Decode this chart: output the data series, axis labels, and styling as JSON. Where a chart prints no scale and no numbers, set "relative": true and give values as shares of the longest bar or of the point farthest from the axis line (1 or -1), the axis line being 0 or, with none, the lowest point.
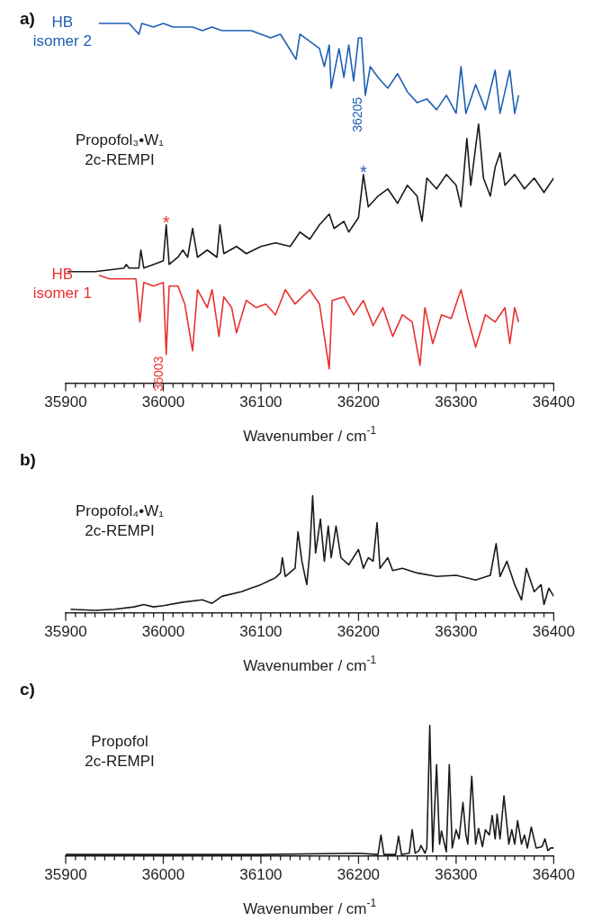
{
  "chart_data": [
    {
      "type": "line",
      "title": "a)",
      "xlabel": "Wavenumber / cm$^{-1}$",
      "relative": true,
      "xlim": [
        35900,
        36400
      ],
      "xticks": [
        35900,
        {
          "value": 35910,
          "label": null
        },
        {
          "value": 35920,
          "label": null
        },
        {
          "value": 35930,
          "label": null
        },
        {
          "value": 35940,
          "label": null
        },
        {
          "value": 35950,
          "label": null
        },
        {
          "value": 35960,
          "label": null
        },
        {
          "value": 35970,
          "label": null
        },
        {
          "value": 35980,
          "label": null
        },
        {
          "value": 35990,
          "label": null
        },
        36000,
        {
          "value": 36010,
          "label": null
        },
        {
          "value": 36020,
          "label": null
        },
        {
          "value": 36030,
          "label": null
        },
        {
          "value": 36040,
          "label": null
        },
        {
          "value": 36050,
          "label": null
        },
        {
          "value": 36060,
          "label": null
        },
        {
          "value": 36070,
          "label": null
        },
        {
          "value": 36080,
          "label": null
        },
        {
          "value": 36090,
          "label": null
        },
        36100,
        {
          "value": 36110,
          "label": null
        },
        {
          "value": 36120,
          "label": null
        },
        {
          "value": 36130,
          "label": null
        },
        {
          "value": 36140,
          "label": null
        },
        {
          "value": 36150,
          "label": null
        },
        {
          "value": 36160,
          "label": null
        },
        {
          "value": 36170,
          "label": null
        },
        {
          "value": 36180,
          "label": null
        },
        {
          "value": 36190,
          "label": null
        },
        36200,
        {
          "value": 36210,
          "label": null
        },
        {
          "value": 36220,
          "label": null
        },
        {
          "value": 36230,
          "label": null
        },
        {
          "value": 36240,
          "label": null
        },
        {
          "value": 36250,
          "label": null
        },
        {
          "value": 36260,
          "label": null
        },
        {
          "value": 36270,
          "label": null
        },
        {
          "value": 36280,
          "label": null
        },
        {
          "value": 36290,
          "label": null
        },
        36300,
        {
          "value": 36310,
          "label": null
        },
        {
          "value": 36320,
          "label": null
        },
        {
          "value": 36330,
          "label": null
        },
        {
          "value": 36340,
          "label": null
        },
        {
          "value": 36350,
          "label": null
        },
        {
          "value": 36360,
          "label": null
        },
        {
          "value": 36370,
          "label": null
        },
        {
          "value": 36380,
          "label": null
        },
        {
          "value": 36390,
          "label": null
        },
        36400
      ],
      "series": [
        {
          "name": "HB isomer 2",
          "color": "#1f5fb5",
          "x": [
            35934,
            35950,
            35965,
            35975,
            35978,
            35990,
            36000,
            36010,
            36020,
            36030,
            36040,
            36050,
            36060,
            36070,
            36080,
            36090,
            36100,
            36110,
            36120,
            36136,
            36140,
            36150,
            36160,
            36165,
            36170,
            36172,
            36180,
            36185,
            36190,
            36195,
            36200,
            36203,
            36207,
            36212,
            36220,
            36230,
            36240,
            36250,
            36260,
            36270,
            36280,
            36290,
            36300,
            36305,
            36310,
            36320,
            36330,
            36340,
            36345,
            36350,
            36355,
            36360,
            36364
          ],
          "values": [
            1.0,
            1.0,
            1.0,
            0.97,
            1.0,
            0.99,
            1.0,
            0.99,
            0.99,
            0.99,
            0.98,
            0.99,
            0.98,
            0.98,
            0.98,
            0.98,
            0.97,
            0.96,
            0.97,
            0.9,
            0.97,
            0.95,
            0.93,
            0.88,
            0.94,
            0.82,
            0.93,
            0.85,
            0.94,
            0.84,
            0.96,
            0.96,
            0.8,
            0.88,
            0.85,
            0.82,
            0.86,
            0.81,
            0.78,
            0.79,
            0.76,
            0.8,
            0.75,
            0.88,
            0.75,
            0.83,
            0.76,
            0.87,
            0.75,
            0.81,
            0.87,
            0.75,
            0.8
          ]
        },
        {
          "name": "Propofol₃•W₁ 2c-REMPI",
          "color": "#1a1a1a",
          "x": [
            35902,
            35930,
            35960,
            35962,
            35965,
            35975,
            35977,
            35980,
            35990,
            36000,
            36003,
            36006,
            36015,
            36020,
            36025,
            36030,
            36035,
            36045,
            36055,
            36058,
            36062,
            36075,
            36085,
            36100,
            36115,
            36130,
            36140,
            36150,
            36160,
            36170,
            36175,
            36185,
            36190,
            36200,
            36205,
            36210,
            36220,
            36230,
            36240,
            36250,
            36260,
            36265,
            36270,
            36280,
            36290,
            36300,
            36305,
            36311,
            36315,
            36323,
            36328,
            36335,
            36340,
            36345,
            36350,
            36360,
            36370,
            36380,
            36390,
            36400
          ],
          "values": [
            0.31,
            0.31,
            0.32,
            0.33,
            0.32,
            0.32,
            0.37,
            0.32,
            0.33,
            0.34,
            0.44,
            0.33,
            0.35,
            0.37,
            0.35,
            0.43,
            0.35,
            0.37,
            0.35,
            0.44,
            0.36,
            0.38,
            0.36,
            0.38,
            0.39,
            0.38,
            0.42,
            0.4,
            0.44,
            0.47,
            0.43,
            0.45,
            0.42,
            0.46,
            0.58,
            0.49,
            0.52,
            0.54,
            0.5,
            0.55,
            0.52,
            0.45,
            0.57,
            0.54,
            0.58,
            0.55,
            0.49,
            0.68,
            0.55,
            0.72,
            0.57,
            0.52,
            0.6,
            0.64,
            0.55,
            0.58,
            0.54,
            0.57,
            0.53,
            0.57
          ]
        },
        {
          "name": "HB isomer 1",
          "color": "#e8312f",
          "x": [
            35934,
            35945,
            35960,
            35972,
            35976,
            35980,
            35990,
            36000,
            36003,
            36006,
            36015,
            36022,
            36030,
            36035,
            36045,
            36050,
            36057,
            36062,
            36070,
            36075,
            36085,
            36095,
            36105,
            36115,
            36125,
            36135,
            36150,
            36160,
            36170,
            36173,
            36185,
            36195,
            36205,
            36215,
            36225,
            36235,
            36245,
            36255,
            36263,
            36268,
            36276,
            36285,
            36295,
            36305,
            36312,
            36320,
            36330,
            36340,
            36350,
            36355,
            36360,
            36364
          ],
          "values": [
            0.3,
            0.29,
            0.29,
            0.29,
            0.17,
            0.28,
            0.27,
            0.28,
            0.08,
            0.27,
            0.27,
            0.22,
            0.09,
            0.26,
            0.21,
            0.26,
            0.13,
            0.24,
            0.21,
            0.14,
            0.23,
            0.21,
            0.22,
            0.19,
            0.26,
            0.22,
            0.26,
            0.22,
            0.04,
            0.23,
            0.24,
            0.19,
            0.23,
            0.16,
            0.21,
            0.13,
            0.19,
            0.17,
            0.05,
            0.21,
            0.11,
            0.19,
            0.18,
            0.26,
            0.18,
            0.1,
            0.19,
            0.17,
            0.21,
            0.11,
            0.21,
            0.17
          ]
        }
      ],
      "annotations": [
        {
          "text": "36205",
          "x": 36207,
          "y": 0.8
        },
        {
          "text": "*",
          "x": 36205,
          "y": 0.58
        },
        {
          "text": "36003",
          "x": 36003,
          "y": 0.08
        },
        {
          "text": "*",
          "x": 36003,
          "y": 0.44
        }
      ]
    },
    {
      "type": "line",
      "title": "b)",
      "xlabel": "Wavenumber / cm$^{-1}$",
      "relative": true,
      "xlim": [
        35900,
        36400
      ],
      "xticks": [
        35900,
        {
          "value": 35910,
          "label": null
        },
        {
          "value": 35920,
          "label": null
        },
        {
          "value": 35930,
          "label": null
        },
        {
          "value": 35940,
          "label": null
        },
        {
          "value": 35950,
          "label": null
        },
        {
          "value": 35960,
          "label": null
        },
        {
          "value": 35970,
          "label": null
        },
        {
          "value": 35980,
          "label": null
        },
        {
          "value": 35990,
          "label": null
        },
        36000,
        {
          "value": 36010,
          "label": null
        },
        {
          "value": 36020,
          "label": null
        },
        {
          "value": 36030,
          "label": null
        },
        {
          "value": 36040,
          "label": null
        },
        {
          "value": 36050,
          "label": null
        },
        {
          "value": 36060,
          "label": null
        },
        {
          "value": 36070,
          "label": null
        },
        {
          "value": 36080,
          "label": null
        },
        {
          "value": 36090,
          "label": null
        },
        36100,
        {
          "value": 36110,
          "label": null
        },
        {
          "value": 36120,
          "label": null
        },
        {
          "value": 36130,
          "label": null
        },
        {
          "value": 36140,
          "label": null
        },
        {
          "value": 36150,
          "label": null
        },
        {
          "value": 36160,
          "label": null
        },
        {
          "value": 36170,
          "label": null
        },
        {
          "value": 36180,
          "label": null
        },
        {
          "value": 36190,
          "label": null
        },
        36200,
        {
          "value": 36210,
          "label": null
        },
        {
          "value": 36220,
          "label": null
        },
        {
          "value": 36230,
          "label": null
        },
        {
          "value": 36240,
          "label": null
        },
        {
          "value": 36250,
          "label": null
        },
        {
          "value": 36260,
          "label": null
        },
        {
          "value": 36270,
          "label": null
        },
        {
          "value": 36280,
          "label": null
        },
        {
          "value": 36290,
          "label": null
        },
        36300,
        {
          "value": 36310,
          "label": null
        },
        {
          "value": 36320,
          "label": null
        },
        {
          "value": 36330,
          "label": null
        },
        {
          "value": 36340,
          "label": null
        },
        {
          "value": 36350,
          "label": null
        },
        {
          "value": 36360,
          "label": null
        },
        {
          "value": 36370,
          "label": null
        },
        {
          "value": 36380,
          "label": null
        },
        {
          "value": 36390,
          "label": null
        },
        36400
      ],
      "series": [
        {
          "name": "Propofol₄•W₁ 2c-REMPI",
          "color": "#1a1a1a",
          "x": [
            35905,
            35930,
            35950,
            35970,
            35980,
            35990,
            36000,
            36020,
            36040,
            36050,
            36060,
            36080,
            36090,
            36100,
            36110,
            36115,
            36120,
            36122,
            36125,
            36135,
            36138,
            36142,
            36147,
            36150,
            36153,
            36156,
            36161,
            36165,
            36169,
            36172,
            36177,
            36182,
            36190,
            36200,
            36205,
            36210,
            36215,
            36219,
            36222,
            36230,
            36235,
            36245,
            36260,
            36280,
            36300,
            36320,
            36335,
            36341,
            36345,
            36352,
            36360,
            36367,
            36372,
            36380,
            36387,
            36390,
            36395,
            36400
          ],
          "values": [
            0.03,
            0.02,
            0.03,
            0.05,
            0.07,
            0.05,
            0.06,
            0.09,
            0.11,
            0.08,
            0.14,
            0.18,
            0.21,
            0.24,
            0.28,
            0.3,
            0.34,
            0.47,
            0.31,
            0.38,
            0.69,
            0.44,
            0.24,
            0.51,
            1.0,
            0.51,
            0.8,
            0.44,
            0.74,
            0.47,
            0.74,
            0.47,
            0.41,
            0.54,
            0.38,
            0.47,
            0.44,
            0.77,
            0.38,
            0.47,
            0.36,
            0.38,
            0.34,
            0.31,
            0.32,
            0.28,
            0.32,
            0.59,
            0.31,
            0.44,
            0.24,
            0.11,
            0.38,
            0.18,
            0.24,
            0.07,
            0.21,
            0.14
          ]
        }
      ]
    },
    {
      "type": "line",
      "title": "c)",
      "xlabel": "Wavenumber / cm$^{-1}$",
      "relative": true,
      "xlim": [
        35900,
        36400
      ],
      "xticks": [
        35900,
        {
          "value": 35910,
          "label": null
        },
        {
          "value": 35920,
          "label": null
        },
        {
          "value": 35930,
          "label": null
        },
        {
          "value": 35940,
          "label": null
        },
        {
          "value": 35950,
          "label": null
        },
        {
          "value": 35960,
          "label": null
        },
        {
          "value": 35970,
          "label": null
        },
        {
          "value": 35980,
          "label": null
        },
        {
          "value": 35990,
          "label": null
        },
        36000,
        {
          "value": 36010,
          "label": null
        },
        {
          "value": 36020,
          "label": null
        },
        {
          "value": 36030,
          "label": null
        },
        {
          "value": 36040,
          "label": null
        },
        {
          "value": 36050,
          "label": null
        },
        {
          "value": 36060,
          "label": null
        },
        {
          "value": 36070,
          "label": null
        },
        {
          "value": 36080,
          "label": null
        },
        {
          "value": 36090,
          "label": null
        },
        36100,
        {
          "value": 36110,
          "label": null
        },
        {
          "value": 36120,
          "label": null
        },
        {
          "value": 36130,
          "label": null
        },
        {
          "value": 36140,
          "label": null
        },
        {
          "value": 36150,
          "label": null
        },
        {
          "value": 36160,
          "label": null
        },
        {
          "value": 36170,
          "label": null
        },
        {
          "value": 36180,
          "label": null
        },
        {
          "value": 36190,
          "label": null
        },
        36200,
        {
          "value": 36210,
          "label": null
        },
        {
          "value": 36220,
          "label": null
        },
        {
          "value": 36230,
          "label": null
        },
        {
          "value": 36240,
          "label": null
        },
        {
          "value": 36250,
          "label": null
        },
        {
          "value": 36260,
          "label": null
        },
        {
          "value": 36270,
          "label": null
        },
        {
          "value": 36280,
          "label": null
        },
        {
          "value": 36290,
          "label": null
        },
        36300,
        {
          "value": 36310,
          "label": null
        },
        {
          "value": 36320,
          "label": null
        },
        {
          "value": 36330,
          "label": null
        },
        {
          "value": 36340,
          "label": null
        },
        {
          "value": 36350,
          "label": null
        },
        {
          "value": 36360,
          "label": null
        },
        {
          "value": 36370,
          "label": null
        },
        {
          "value": 36380,
          "label": null
        },
        {
          "value": 36390,
          "label": null
        },
        36400
      ],
      "series": [
        {
          "name": "Propofol 2c-REMPI",
          "color": "#1a1a1a",
          "x": [
            35900,
            36100,
            36200,
            36220,
            36223,
            36226,
            36238,
            36241,
            36244,
            36252,
            36255,
            36258,
            36262,
            36264,
            36268,
            36270,
            36273,
            36276,
            36280,
            36283,
            36285,
            36290,
            36293,
            36296,
            36300,
            36303,
            36307,
            36310,
            36312,
            36316,
            36320,
            36323,
            36327,
            36330,
            36334,
            36337,
            36340,
            36342,
            36345,
            36349,
            36354,
            36357,
            36360,
            36363,
            36367,
            36370,
            36373,
            36377,
            36382,
            36388,
            36391,
            36394,
            36397,
            36400
          ],
          "values": [
            0.01,
            0.01,
            0.02,
            0.01,
            0.16,
            0.01,
            0.01,
            0.15,
            0.01,
            0.02,
            0.2,
            0.02,
            0.04,
            0.08,
            0.02,
            0.06,
            1.0,
            0.03,
            0.7,
            0.09,
            0.19,
            0.03,
            0.7,
            0.06,
            0.2,
            0.13,
            0.41,
            0.16,
            0.09,
            0.61,
            0.09,
            0.21,
            0.07,
            0.2,
            0.16,
            0.31,
            0.13,
            0.32,
            0.13,
            0.46,
            0.09,
            0.2,
            0.09,
            0.27,
            0.09,
            0.16,
            0.06,
            0.22,
            0.06,
            0.07,
            0.13,
            0.04,
            0.06,
            0.06
          ]
        }
      ]
    }
  ]
}
